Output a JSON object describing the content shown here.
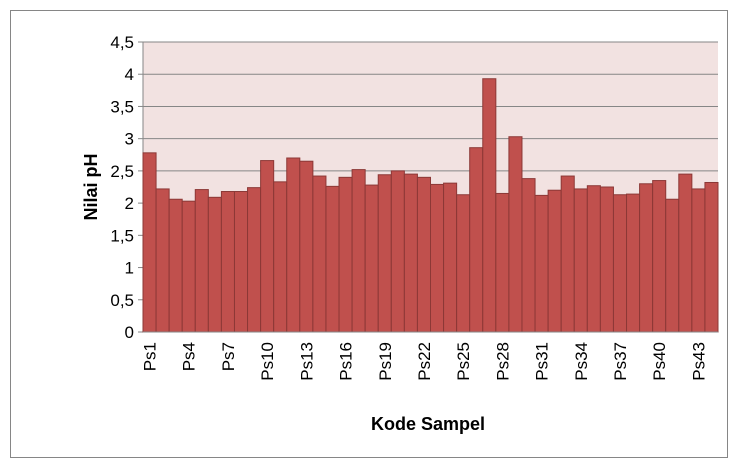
{
  "chart_data": {
    "type": "bar",
    "x_label": "Kode Sampel",
    "y_label": "Nilai pH",
    "categories": [
      "Ps1",
      null,
      null,
      "Ps4",
      null,
      null,
      "Ps7",
      null,
      null,
      "Ps10",
      null,
      null,
      "Ps13",
      null,
      null,
      "Ps16",
      null,
      null,
      "Ps19",
      null,
      null,
      "Ps22",
      null,
      null,
      "Ps25",
      null,
      null,
      "Ps28",
      null,
      null,
      "Ps31",
      null,
      null,
      "Ps34",
      null,
      null,
      "Ps37",
      null,
      null,
      "Ps40",
      null,
      null,
      "Ps43",
      null
    ],
    "values": [
      2.78,
      2.22,
      2.06,
      2.03,
      2.21,
      2.09,
      2.18,
      2.18,
      2.24,
      2.66,
      2.33,
      2.7,
      2.65,
      2.42,
      2.26,
      2.4,
      2.52,
      2.28,
      2.44,
      2.5,
      2.45,
      2.4,
      2.29,
      2.31,
      2.13,
      2.86,
      3.93,
      2.15,
      3.03,
      2.38,
      2.12,
      2.2,
      2.42,
      2.22,
      2.27,
      2.25,
      2.13,
      2.14,
      2.3,
      2.35,
      2.06,
      2.45,
      2.22,
      2.32
    ],
    "color": "#c0504d",
    "ylim": [
      0,
      4.5
    ],
    "yticks": [
      0,
      {
        "value": 0.5,
        "label": "0,5"
      },
      1,
      {
        "value": 1.5,
        "label": "1,5"
      },
      2,
      {
        "value": 2.5,
        "label": "2,5"
      },
      3,
      {
        "value": 3.5,
        "label": "3,5"
      },
      4,
      {
        "value": 4.5,
        "label": "4,5"
      }
    ],
    "grid": true
  }
}
